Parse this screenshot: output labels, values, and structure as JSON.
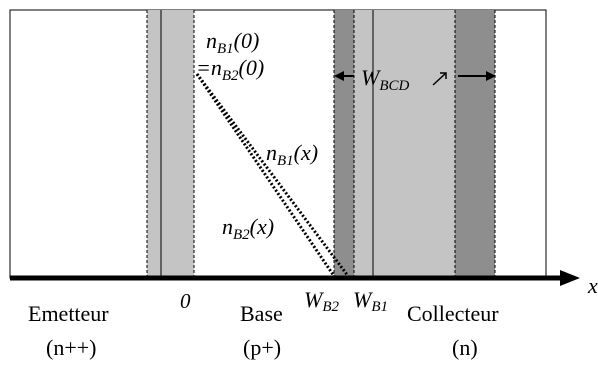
{
  "regions": {
    "emitter": {
      "name": "Emetteur",
      "doping": "(n++)"
    },
    "base": {
      "name": "Base",
      "doping": "(p+)"
    },
    "collector": {
      "name": "Collecteur",
      "doping": "(n)"
    }
  },
  "axis": {
    "label": "x",
    "origin": "0"
  },
  "positions": {
    "wb2": {
      "base": "W",
      "sub": "B2"
    },
    "wb1": {
      "base": "W",
      "sub": "B1"
    }
  },
  "annotations": {
    "nb1_0": {
      "base": "n",
      "sub": "B1",
      "arg": "(0)"
    },
    "nb2_0": {
      "prefix": "=n",
      "sub": "B2",
      "arg": "(0)"
    },
    "nb1_x": {
      "base": "n",
      "sub": "B1",
      "arg": "(x)"
    },
    "nb2_x": {
      "base": "n",
      "sub": "B2",
      "arg": "(x)"
    },
    "wbcd": {
      "base": "W",
      "sub": "BCD"
    }
  },
  "colors": {
    "light_gray": "#c4c4c4",
    "dark_gray": "#8e8e8e",
    "line": "#000000"
  }
}
